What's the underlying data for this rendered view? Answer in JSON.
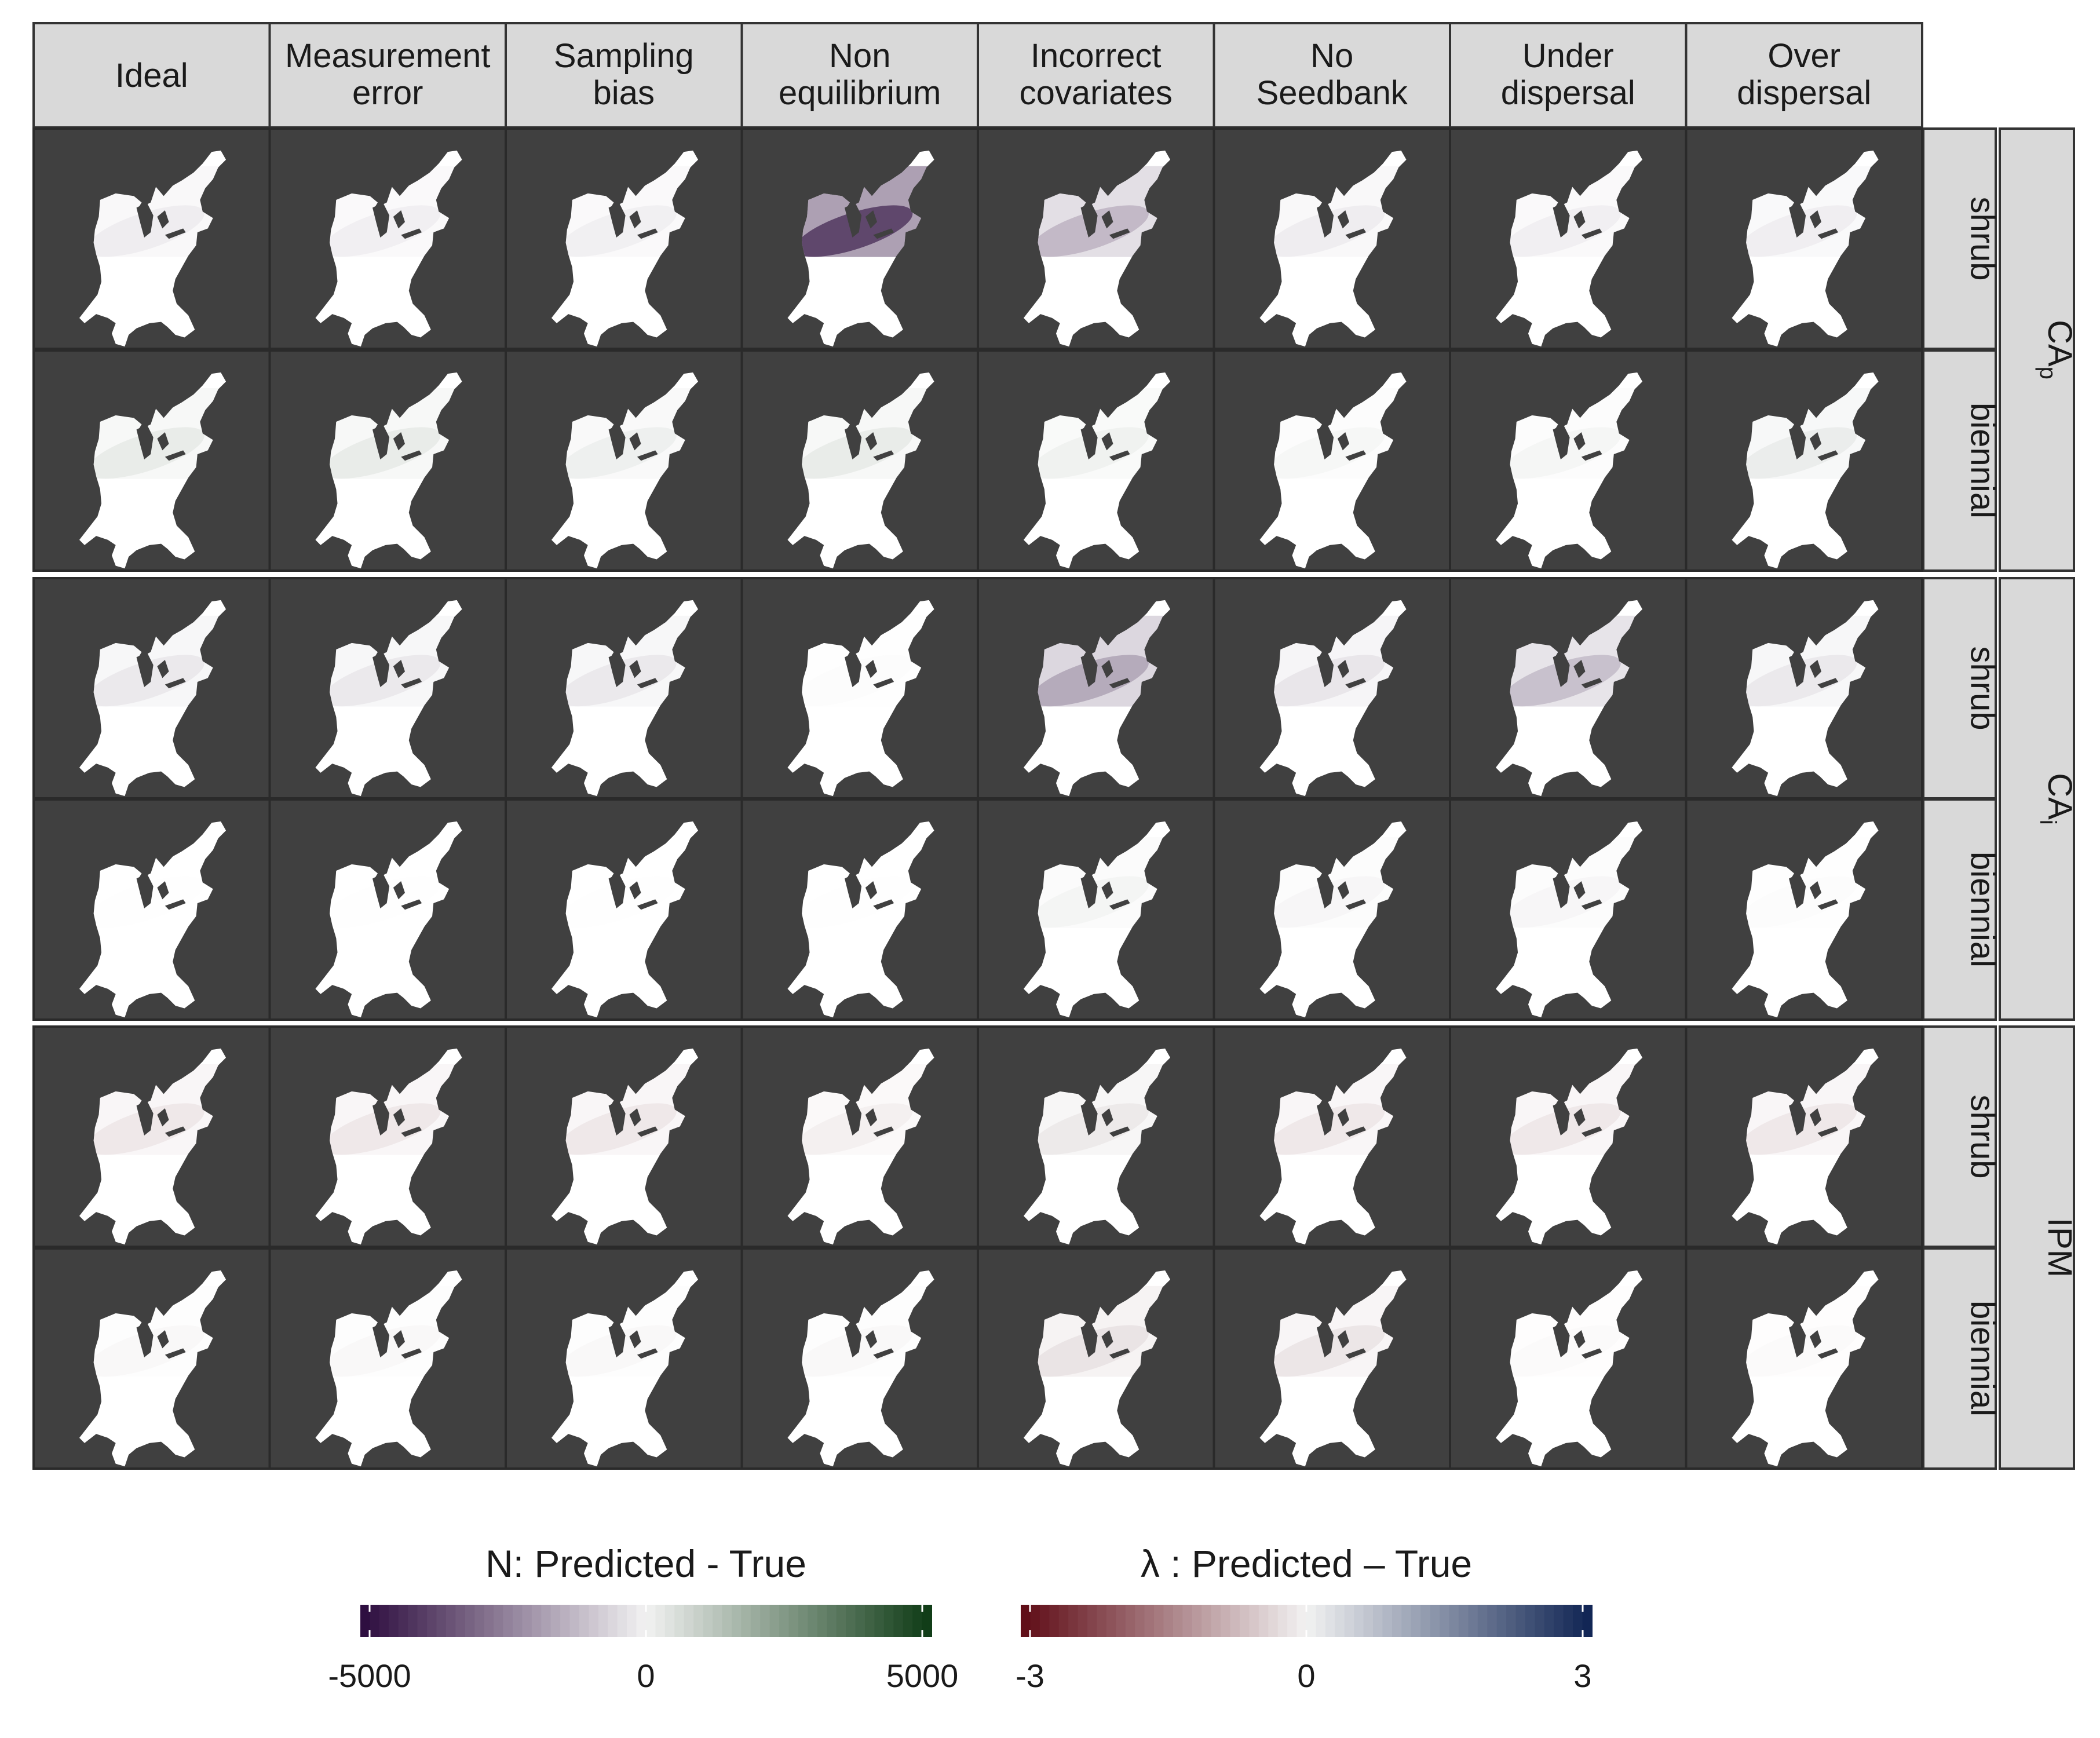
{
  "chart_data": {
    "type": "heatmap",
    "facet_columns": [
      "Ideal",
      "Measurement error",
      "Sampling bias",
      "Non equilibrium",
      "Incorrect covariates",
      "No Seedbank",
      "Under dispersal",
      "Over dispersal"
    ],
    "facet_columns_lines": [
      [
        "Ideal"
      ],
      [
        "Measurement",
        "error"
      ],
      [
        "Sampling",
        "bias"
      ],
      [
        "Non",
        "equilibrium"
      ],
      [
        "Incorrect",
        "covariates"
      ],
      [
        "No",
        "Seedbank"
      ],
      [
        "Under",
        "dispersal"
      ],
      [
        "Over",
        "dispersal"
      ]
    ],
    "life_histories": [
      "shrub",
      "biennial"
    ],
    "model_groups": [
      {
        "label": "CA",
        "subscript": "p",
        "scale": "N"
      },
      {
        "label": "CA",
        "subscript": "i",
        "scale": "N"
      },
      {
        "label": "IPM",
        "subscript": "",
        "scale": "lambda"
      }
    ],
    "rows": [
      {
        "model": "CAp",
        "life_history": "shrub",
        "scale": "N",
        "mean_error_by_column": [
          -500,
          -400,
          -450,
          -3800,
          -1500,
          -500,
          -400,
          -450
        ],
        "band_intensity": [
          0.35,
          0.35,
          0.3,
          0.9,
          0.7,
          0.35,
          0.35,
          0.35
        ]
      },
      {
        "model": "CAp",
        "life_history": "biennial",
        "scale": "N",
        "mean_error_by_column": [
          800,
          800,
          700,
          800,
          600,
          300,
          400,
          700
        ],
        "band_intensity": [
          0.3,
          0.3,
          0.25,
          0.3,
          0.25,
          0.2,
          0.2,
          0.3
        ]
      },
      {
        "model": "CAi",
        "life_history": "shrub",
        "scale": "N",
        "mean_error_by_column": [
          -700,
          -700,
          -700,
          -100,
          -1800,
          -700,
          -1500,
          -700
        ],
        "band_intensity": [
          0.35,
          0.35,
          0.35,
          0.1,
          0.75,
          0.4,
          0.6,
          0.35
        ]
      },
      {
        "model": "CAi",
        "life_history": "biennial",
        "scale": "N",
        "mean_error_by_column": [
          -50,
          -50,
          -50,
          -50,
          400,
          -300,
          -300,
          -50
        ],
        "band_intensity": [
          0.05,
          0.05,
          0.05,
          0.05,
          0.25,
          0.2,
          0.2,
          0.1
        ]
      },
      {
        "model": "IPM",
        "life_history": "shrub",
        "scale": "lambda",
        "mean_error_by_column": [
          -0.5,
          -0.5,
          -0.5,
          -0.35,
          -0.2,
          -0.5,
          -0.5,
          -0.5
        ],
        "band_intensity": [
          0.3,
          0.3,
          0.3,
          0.25,
          0.6,
          0.3,
          0.3,
          0.3
        ]
      },
      {
        "model": "IPM",
        "life_history": "biennial",
        "scale": "lambda",
        "mean_error_by_column": [
          -0.2,
          -0.2,
          -0.2,
          -0.2,
          -0.3,
          -0.5,
          -0.15,
          -0.15
        ],
        "band_intensity": [
          0.15,
          0.15,
          0.15,
          0.15,
          0.6,
          0.35,
          0.12,
          0.12
        ]
      }
    ],
    "legends": [
      {
        "id": "N",
        "title": "N: Predicted - True",
        "min": -5000,
        "max": 5000,
        "ticks": [
          "-5000",
          "0",
          "5000"
        ],
        "low_color": "#2b0a3d",
        "mid_color": "#f2f2f2",
        "high_color": "#0d3a14"
      },
      {
        "id": "lambda",
        "title": "λ : Predicted – True",
        "min": -3,
        "max": 3,
        "ticks": [
          "-3",
          "0",
          "3"
        ],
        "low_color": "#5e0a14",
        "mid_color": "#f2f2f2",
        "high_color": "#0e2352"
      }
    ],
    "panel_background": "#404040",
    "strip_color": "#d9d9d9",
    "map_fill": "#ffffff",
    "legend_position": "bottom"
  }
}
